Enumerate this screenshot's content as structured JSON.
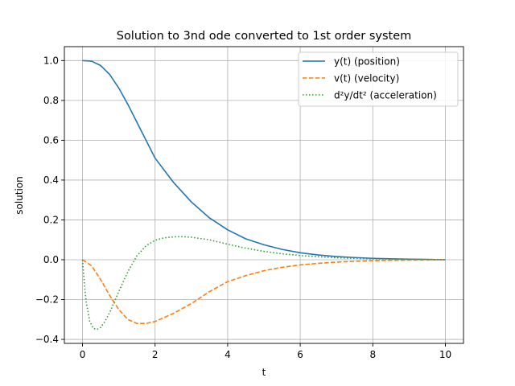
{
  "chart_data": {
    "type": "line",
    "title": "Solution to 3nd ode converted to 1st order system",
    "xlabel": "t",
    "ylabel": "solution",
    "xlim": [
      -0.5,
      10.5
    ],
    "ylim": [
      -0.42,
      1.07
    ],
    "xticks": [
      0,
      2,
      4,
      6,
      8,
      10
    ],
    "yticks": [
      -0.4,
      -0.2,
      0.0,
      0.2,
      0.4,
      0.6,
      0.8,
      1.0
    ],
    "xtick_labels": [
      "0",
      "2",
      "4",
      "6",
      "8",
      "10"
    ],
    "ytick_labels": [
      "−0.4",
      "−0.2",
      "0.0",
      "0.2",
      "0.4",
      "0.6",
      "0.8",
      "1.0"
    ],
    "grid": true,
    "legend_position": "top-right",
    "series": [
      {
        "name": "y(t) (position)",
        "color": "#1f77b4",
        "style": "solid",
        "x": [
          0,
          0.25,
          0.5,
          0.75,
          1.0,
          1.25,
          1.5,
          1.75,
          2.0,
          2.5,
          3.0,
          3.5,
          4.0,
          4.5,
          5.0,
          5.5,
          6.0,
          6.5,
          7.0,
          7.5,
          8.0,
          8.5,
          9.0,
          9.5,
          10.0
        ],
        "values": [
          1.0,
          0.997,
          0.975,
          0.93,
          0.862,
          0.78,
          0.69,
          0.6,
          0.51,
          0.39,
          0.29,
          0.21,
          0.15,
          0.105,
          0.075,
          0.052,
          0.035,
          0.024,
          0.016,
          0.011,
          0.007,
          0.005,
          0.003,
          0.002,
          0.0
        ]
      },
      {
        "name": "v(t) (velocity)",
        "color": "#ff7f0e",
        "style": "dashed",
        "x": [
          0,
          0.25,
          0.5,
          0.75,
          1.0,
          1.25,
          1.5,
          1.75,
          2.0,
          2.5,
          3.0,
          3.5,
          4.0,
          4.5,
          5.0,
          5.5,
          6.0,
          6.5,
          7.0,
          7.5,
          8.0,
          8.5,
          9.0,
          9.5,
          10.0
        ],
        "values": [
          0.0,
          -0.03,
          -0.1,
          -0.18,
          -0.25,
          -0.3,
          -0.32,
          -0.32,
          -0.31,
          -0.27,
          -0.22,
          -0.16,
          -0.11,
          -0.08,
          -0.055,
          -0.038,
          -0.026,
          -0.018,
          -0.012,
          -0.008,
          -0.005,
          -0.003,
          -0.002,
          -0.001,
          0.0
        ]
      },
      {
        "name": "d²y/dt² (acceleration)",
        "color": "#2ca02c",
        "style": "dotted",
        "x": [
          0,
          0.05,
          0.1,
          0.2,
          0.3,
          0.4,
          0.5,
          0.6,
          0.75,
          1.0,
          1.25,
          1.5,
          1.75,
          2.0,
          2.25,
          2.5,
          2.75,
          3.0,
          3.5,
          4.0,
          4.5,
          5.0,
          5.5,
          6.0,
          6.5,
          7.0,
          7.5,
          8.0,
          8.5,
          9.0,
          9.5,
          10.0
        ],
        "values": [
          0.0,
          -0.12,
          -0.21,
          -0.31,
          -0.345,
          -0.35,
          -0.34,
          -0.315,
          -0.265,
          -0.16,
          -0.06,
          0.02,
          0.07,
          0.098,
          0.11,
          0.115,
          0.116,
          0.113,
          0.1,
          0.078,
          0.058,
          0.042,
          0.03,
          0.021,
          0.015,
          0.01,
          0.007,
          0.005,
          0.003,
          0.002,
          0.001,
          0.0
        ]
      }
    ]
  }
}
